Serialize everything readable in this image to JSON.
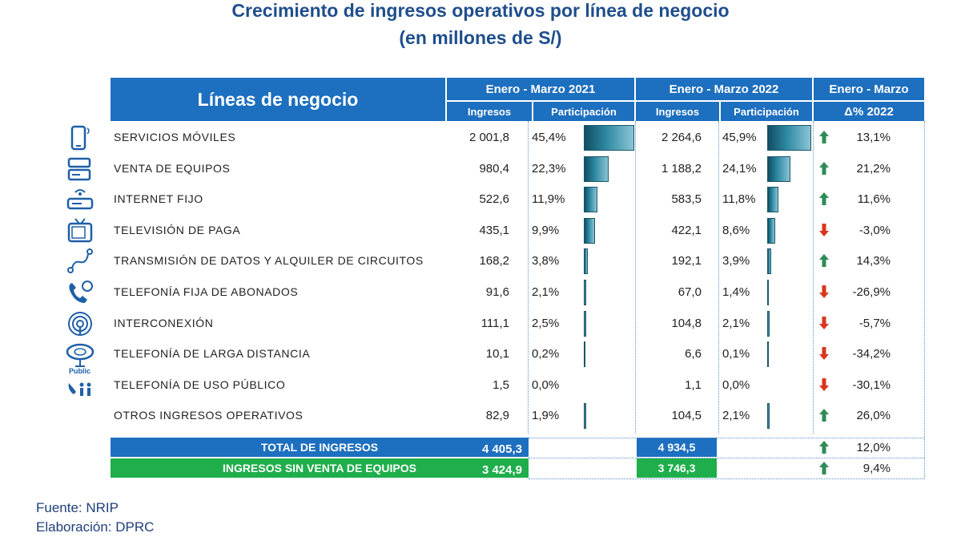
{
  "title": "Crecimiento de ingresos operativos por línea de negocio",
  "subtitle": "(en millones de S/)",
  "header": {
    "lineas": "Líneas de negocio",
    "period1": "Enero - Marzo 2021",
    "period2": "Enero - Marzo 2022",
    "period3": "Enero - Marzo",
    "ingresos": "Ingresos",
    "participacion": "Participación",
    "delta": "Δ% 2022"
  },
  "colors": {
    "header_blue": "#1d6fbf",
    "green": "#1fae4b",
    "up_arrow": "#2e8b57",
    "down_arrow": "#d9361c",
    "title": "#1f4e8c"
  },
  "chart_data": {
    "type": "table",
    "title": "Crecimiento de ingresos operativos por línea de negocio",
    "subtitle": "(en millones de S/)",
    "rows": [
      {
        "icon": "mobile-phone-icon",
        "label": "SERVICIOS MÓVILES",
        "ing2021": "2 001,8",
        "part2021": "45,4%",
        "p2021": 45.4,
        "ing2022": "2 264,6",
        "part2022": "45,9%",
        "p2022": 45.9,
        "delta": "13,1%",
        "dir": "up"
      },
      {
        "icon": "device-icon",
        "label": "VENTA DE EQUIPOS",
        "ing2021": "980,4",
        "part2021": "22,3%",
        "p2021": 22.3,
        "ing2022": "1 188,2",
        "part2022": "24,1%",
        "p2022": 24.1,
        "delta": "21,2%",
        "dir": "up"
      },
      {
        "icon": "router-icon",
        "label": "INTERNET FIJO",
        "ing2021": "522,6",
        "part2021": "11,9%",
        "p2021": 11.9,
        "ing2022": "583,5",
        "part2022": "11,8%",
        "p2022": 11.8,
        "delta": "11,6%",
        "dir": "up"
      },
      {
        "icon": "tv-icon",
        "label": "TELEVISIÓN DE PAGA",
        "ing2021": "435,1",
        "part2021": "9,9%",
        "p2021": 9.9,
        "ing2022": "422,1",
        "part2022": "8,6%",
        "p2022": 8.6,
        "delta": "-3,0%",
        "dir": "down"
      },
      {
        "icon": "data-link-icon",
        "label": "TRANSMISIÓN DE DATOS Y ALQUILER DE CIRCUITOS",
        "ing2021": "168,2",
        "part2021": "3,8%",
        "p2021": 3.8,
        "ing2022": "192,1",
        "part2022": "3,9%",
        "p2022": 3.9,
        "delta": "14,3%",
        "dir": "up"
      },
      {
        "icon": "phone-icon",
        "label": "TELEFONÍA FIJA DE ABONADOS",
        "ing2021": "91,6",
        "part2021": "2,1%",
        "p2021": 2.1,
        "ing2022": "67,0",
        "part2022": "1,4%",
        "p2022": 1.4,
        "delta": "-26,9%",
        "dir": "down"
      },
      {
        "icon": "broadcast-icon",
        "label": "INTERCONEXIÓN",
        "ing2021": "111,1",
        "part2021": "2,5%",
        "p2021": 2.5,
        "ing2022": "104,8",
        "part2022": "2,1%",
        "p2022": 2.1,
        "delta": "-5,7%",
        "dir": "down"
      },
      {
        "icon": "satellite-icon",
        "label": "TELEFONÍA DE LARGA DISTANCIA",
        "ing2021": "10,1",
        "part2021": "0,2%",
        "p2021": 0.2,
        "ing2022": "6,6",
        "part2022": "0,1%",
        "p2022": 0.1,
        "delta": "-34,2%",
        "dir": "down"
      },
      {
        "icon": "public-phone-icon",
        "label": "TELEFONÍA DE USO PÚBLICO",
        "ing2021": "1,5",
        "part2021": "0,0%",
        "p2021": 0.0,
        "ing2022": "1,1",
        "part2022": "0,0%",
        "p2022": 0.0,
        "delta": "-30,1%",
        "dir": "down"
      },
      {
        "icon": "",
        "label": "OTROS INGRESOS OPERATIVOS",
        "ing2021": "82,9",
        "part2021": "1,9%",
        "p2021": 1.9,
        "ing2022": "104,5",
        "part2022": "2,1%",
        "p2022": 2.1,
        "delta": "26,0%",
        "dir": "up"
      }
    ],
    "totals": [
      {
        "label": "TOTAL DE INGRESOS",
        "ing2021": "4 405,3",
        "ing2022": "4 934,5",
        "delta": "12,0%",
        "dir": "up",
        "color": "blue"
      },
      {
        "label": "INGRESOS SIN VENTA DE EQUIPOS",
        "ing2021": "3 424,9",
        "ing2022": "3 746,3",
        "delta": "9,4%",
        "dir": "up",
        "color": "green"
      }
    ]
  },
  "icons": {
    "public_label": "Public"
  },
  "footer": {
    "fuente": "Fuente: NRIP",
    "elaboracion": "Elaboración: DPRC"
  }
}
